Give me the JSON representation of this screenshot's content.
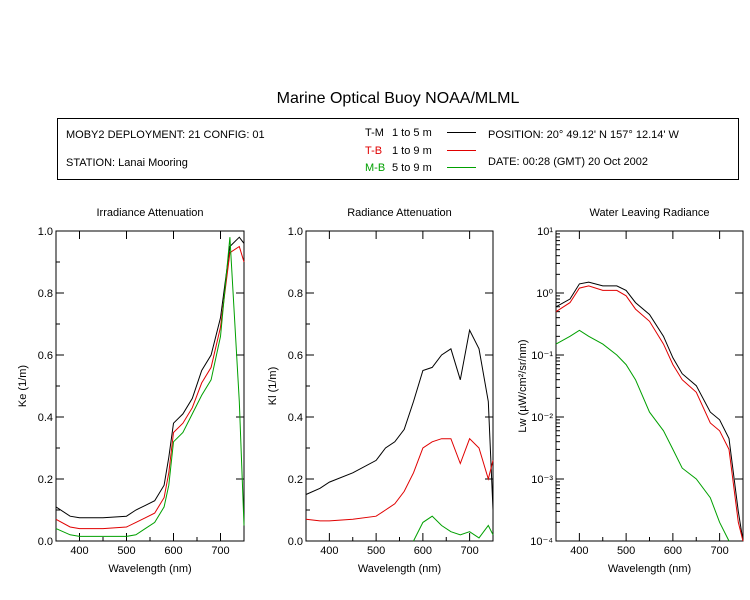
{
  "title": "Marine Optical Buoy NOAA/MLML",
  "header": {
    "deployment": "MOBY2 DEPLOYMENT: 21 CONFIG: 01",
    "station": "STATION: Lanai Mooring",
    "position": "POSITION: 20° 49.12' N   157° 12.14' W",
    "date": "DATE: 00:28 (GMT) 20 Oct 2002"
  },
  "legend": [
    {
      "code": "T-M",
      "range": "1 to 5  m",
      "color": "#000000"
    },
    {
      "code": "T-B",
      "range": "1 to 9  m",
      "color": "#e00000"
    },
    {
      "code": "M-B",
      "range": "5 to 9  m",
      "color": "#00a000"
    }
  ],
  "chart_data": [
    {
      "type": "line",
      "title": "Irradiance Attenuation",
      "xlabel": "Wavelength (nm)",
      "ylabel": "Ke  (1/m)",
      "xlim": [
        350,
        750
      ],
      "ylim": [
        0,
        1
      ],
      "yscale": "linear",
      "x_ticks": [
        "400",
        "500",
        "600",
        "700"
      ],
      "y_ticks": [
        "0.0",
        "0.2",
        "0.4",
        "0.6",
        "0.8",
        "1.0"
      ],
      "x": [
        350,
        380,
        400,
        450,
        500,
        520,
        540,
        560,
        580,
        590,
        600,
        620,
        640,
        660,
        680,
        700,
        720,
        740,
        750
      ],
      "series": [
        {
          "name": "T-M",
          "color": "#000000",
          "values": [
            0.11,
            0.08,
            0.075,
            0.075,
            0.08,
            0.1,
            0.115,
            0.13,
            0.18,
            0.27,
            0.38,
            0.41,
            0.46,
            0.55,
            0.6,
            0.72,
            0.95,
            0.98,
            0.96
          ]
        },
        {
          "name": "T-B",
          "color": "#e00000",
          "values": [
            0.07,
            0.045,
            0.04,
            0.04,
            0.045,
            0.06,
            0.075,
            0.09,
            0.14,
            0.22,
            0.35,
            0.38,
            0.43,
            0.51,
            0.56,
            0.69,
            0.93,
            0.95,
            0.9
          ]
        },
        {
          "name": "M-B",
          "color": "#00a000",
          "values": [
            0.04,
            0.02,
            0.015,
            0.015,
            0.015,
            0.02,
            0.04,
            0.06,
            0.11,
            0.18,
            0.32,
            0.35,
            0.41,
            0.47,
            0.52,
            0.66,
            0.98,
            0.45,
            0.05
          ]
        }
      ]
    },
    {
      "type": "line",
      "title": "Radiance Attenuation",
      "xlabel": "Wavelength (nm)",
      "ylabel": "Kl  (1/m)",
      "xlim": [
        350,
        750
      ],
      "ylim": [
        0,
        1
      ],
      "yscale": "linear",
      "x_ticks": [
        "400",
        "500",
        "600",
        "700"
      ],
      "y_ticks": [
        "0.0",
        "0.2",
        "0.4",
        "0.6",
        "0.8",
        "1.0"
      ],
      "x": [
        350,
        380,
        400,
        450,
        500,
        520,
        540,
        560,
        580,
        600,
        620,
        640,
        660,
        680,
        700,
        720,
        740,
        750
      ],
      "series": [
        {
          "name": "T-M",
          "color": "#000000",
          "values": [
            0.15,
            0.17,
            0.19,
            0.22,
            0.26,
            0.3,
            0.32,
            0.36,
            0.45,
            0.55,
            0.56,
            0.6,
            0.62,
            0.52,
            0.68,
            0.62,
            0.45,
            0.1
          ]
        },
        {
          "name": "T-B",
          "color": "#e00000",
          "values": [
            0.07,
            0.065,
            0.065,
            0.07,
            0.08,
            0.1,
            0.12,
            0.16,
            0.22,
            0.3,
            0.32,
            0.33,
            0.33,
            0.25,
            0.33,
            0.3,
            0.2,
            0.26
          ]
        },
        {
          "name": "M-B",
          "color": "#00a000",
          "values": [
            null,
            null,
            null,
            null,
            null,
            null,
            null,
            null,
            0.0,
            0.06,
            0.08,
            0.05,
            0.03,
            0.02,
            0.03,
            0.01,
            0.05,
            0.02
          ]
        }
      ]
    },
    {
      "type": "line",
      "title": "Water Leaving Radiance",
      "xlabel": "Wavelength (nm)",
      "ylabel": "Lw  (µW/cm²/sr/nm)",
      "xlim": [
        350,
        750
      ],
      "ylim": [
        0.0001,
        10
      ],
      "yscale": "log",
      "x_ticks": [
        "400",
        "500",
        "600",
        "700"
      ],
      "y_ticks": [
        "10¹",
        "10⁰",
        "10⁻¹",
        "10⁻²",
        "10⁻³",
        "10⁻⁴"
      ],
      "x": [
        350,
        380,
        400,
        420,
        450,
        480,
        500,
        520,
        550,
        580,
        600,
        620,
        650,
        680,
        700,
        720,
        740,
        750
      ],
      "series": [
        {
          "name": "T-M",
          "color": "#000000",
          "values": [
            0.6,
            0.8,
            1.4,
            1.5,
            1.3,
            1.3,
            1.1,
            0.7,
            0.45,
            0.2,
            0.09,
            0.05,
            0.032,
            0.012,
            0.009,
            0.0045,
            0.0003,
            0.0001
          ]
        },
        {
          "name": "T-B",
          "color": "#e00000",
          "values": [
            0.5,
            0.7,
            1.2,
            1.3,
            1.1,
            1.1,
            0.9,
            0.55,
            0.35,
            0.15,
            0.07,
            0.04,
            0.025,
            0.008,
            0.006,
            0.003,
            0.0002,
            0.0001
          ]
        },
        {
          "name": "M-B",
          "color": "#00a000",
          "values": [
            0.15,
            0.2,
            0.25,
            0.2,
            0.15,
            0.1,
            0.07,
            0.04,
            0.012,
            0.006,
            0.003,
            0.0015,
            0.001,
            0.0005,
            0.0002,
            0.0001,
            null,
            null
          ]
        }
      ]
    }
  ]
}
